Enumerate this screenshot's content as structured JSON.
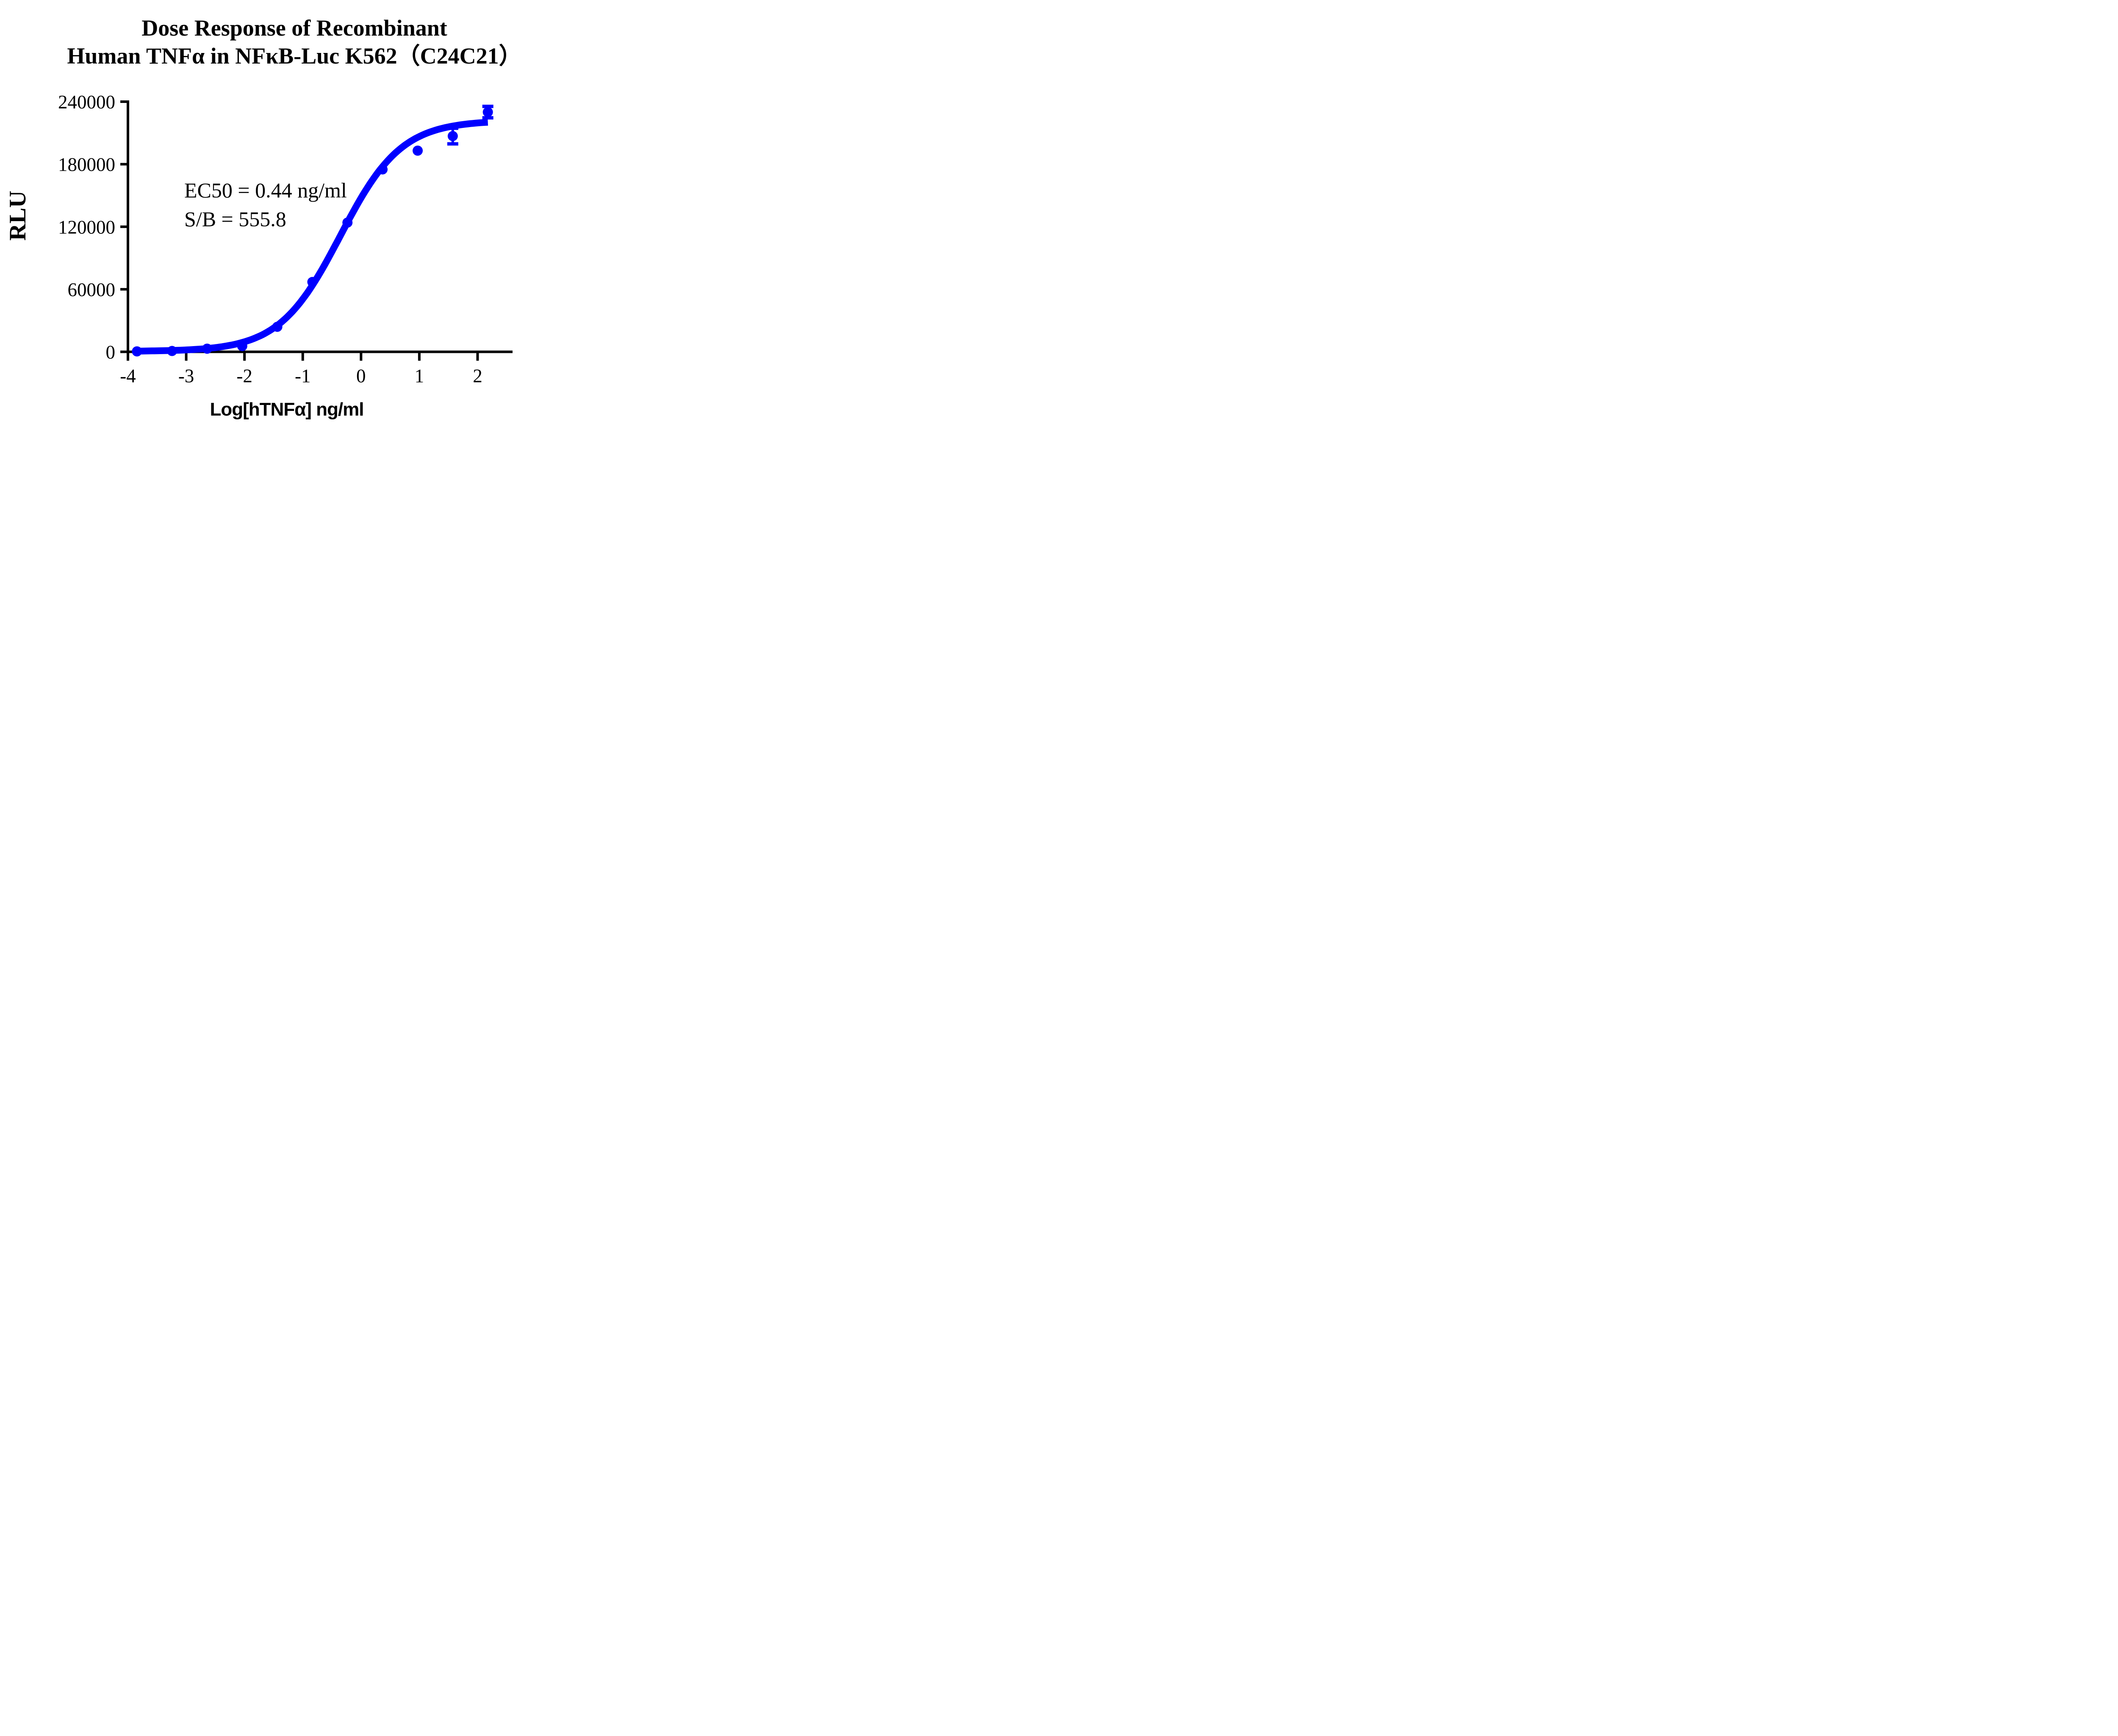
{
  "chart_data": {
    "type": "scatter",
    "title_lines": [
      "Dose Response of Recombinant",
      "Human TNFα in NFκB-Luc K562（C24C21）"
    ],
    "xlabel": "Log[hTNFα] ng/ml",
    "ylabel": "RLU",
    "x_ticks": [
      -4,
      -3,
      -2,
      -1,
      0,
      1,
      2
    ],
    "y_ticks": [
      0,
      60000,
      120000,
      180000,
      240000
    ],
    "xlim": [
      -4,
      2.6
    ],
    "ylim": [
      0,
      240000
    ],
    "grid": false,
    "legend": "none",
    "series": [
      {
        "name": "Recombinant Human TNFα",
        "color": "#0000ff",
        "marker": "circle",
        "points": [
          {
            "x": -3.845,
            "y": 414,
            "err": 0
          },
          {
            "x": -3.243,
            "y": 800,
            "err": 0
          },
          {
            "x": -2.641,
            "y": 3000,
            "err": 0
          },
          {
            "x": -2.039,
            "y": 5500,
            "err": 0
          },
          {
            "x": -1.437,
            "y": 24000,
            "err": 0
          },
          {
            "x": -0.835,
            "y": 67000,
            "err": 0
          },
          {
            "x": -0.233,
            "y": 124000,
            "err": 0
          },
          {
            "x": 0.369,
            "y": 175000,
            "err": 0
          },
          {
            "x": 0.972,
            "y": 193000,
            "err": 0
          },
          {
            "x": 1.574,
            "y": 207000,
            "err": 7500
          },
          {
            "x": 2.176,
            "y": 230000,
            "err": 5500
          }
        ]
      }
    ],
    "fit": {
      "model": "four_parameter_logistic",
      "bottom": 414,
      "top": 222000,
      "log_ec50": -0.3565,
      "hill": 0.83,
      "x_start": -3.845,
      "x_end": 2.176
    },
    "annotation_lines": [
      "EC50 = 0.44 ng/ml",
      "S/B = 555.8"
    ],
    "ec50_ng_ml": 0.44,
    "signal_to_background": 555.8,
    "axis_color": "#000000",
    "background_color": "#ffffff"
  }
}
